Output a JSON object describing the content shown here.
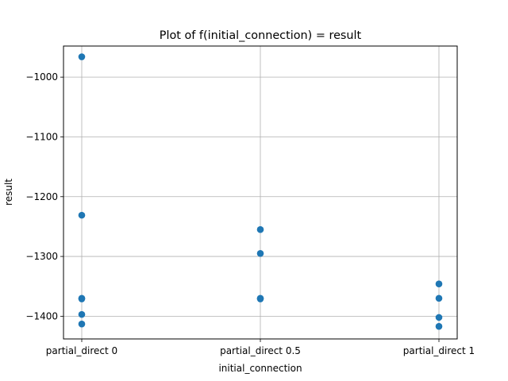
{
  "chart_data": {
    "type": "scatter",
    "title": "Plot of f(initial_connection) = result",
    "xlabel": "initial_connection",
    "ylabel": "result",
    "categories": [
      "partial_direct 0",
      "partial_direct 0.5",
      "partial_direct 1"
    ],
    "y_ticks": [
      -1000,
      -1100,
      -1200,
      -1300,
      -1400
    ],
    "y_tick_labels": [
      "−1000",
      "−1100",
      "−1200",
      "−1300",
      "−1400"
    ],
    "ylim": [
      -1438,
      -948
    ],
    "grid": true,
    "marker_color": "#1f77b4",
    "points": [
      {
        "x": "partial_direct 0",
        "y": -966
      },
      {
        "x": "partial_direct 0",
        "y": -1231
      },
      {
        "x": "partial_direct 0",
        "y": -1370
      },
      {
        "x": "partial_direct 0",
        "y": -1371
      },
      {
        "x": "partial_direct 0",
        "y": -1397
      },
      {
        "x": "partial_direct 0",
        "y": -1413
      },
      {
        "x": "partial_direct 0.5",
        "y": -1255
      },
      {
        "x": "partial_direct 0.5",
        "y": -1295
      },
      {
        "x": "partial_direct 0.5",
        "y": -1370
      },
      {
        "x": "partial_direct 0.5",
        "y": -1371
      },
      {
        "x": "partial_direct 1",
        "y": -1346
      },
      {
        "x": "partial_direct 1",
        "y": -1370
      },
      {
        "x": "partial_direct 1",
        "y": -1402
      },
      {
        "x": "partial_direct 1",
        "y": -1417
      }
    ]
  }
}
